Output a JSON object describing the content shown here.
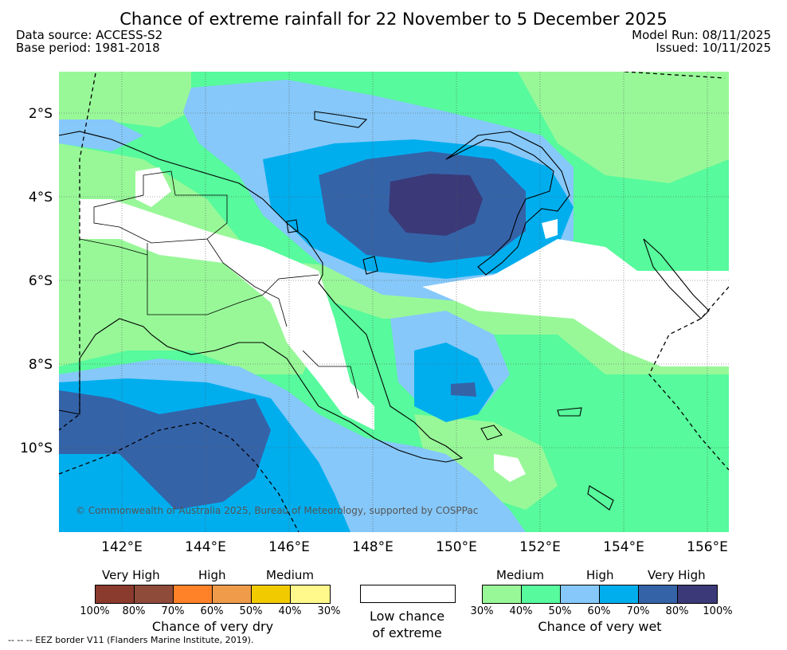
{
  "header": {
    "title": "Chance of extreme rainfall for 22 November to 5 December 2025",
    "data_source": "Data source: ACCESS-S2",
    "base_period": "Base period: 1981-2018",
    "model_run": "Model Run: 08/11/2025",
    "issued": "Issued: 10/11/2025"
  },
  "map": {
    "lat_labels": [
      "2°S",
      "4°S",
      "6°S",
      "8°S",
      "10°S"
    ],
    "lon_labels": [
      "142°E",
      "144°E",
      "146°E",
      "148°E",
      "150°E",
      "152°E",
      "154°E",
      "156°E"
    ],
    "copyright": "© Commonwealth of Australia 2025, Bureau of Meteorology, supported by COSPPac"
  },
  "legend": {
    "dry": {
      "heads": [
        "Very High",
        "High",
        "Medium"
      ],
      "ticks": [
        "100%",
        "80%",
        "70%",
        "60%",
        "50%",
        "40%",
        "30%"
      ],
      "caption": "Chance of very dry",
      "colors": [
        "#8b3a2e",
        "#8e4b3a",
        "#ff8228",
        "#ef9b4a",
        "#f2ca00",
        "#fff98c"
      ]
    },
    "low": {
      "caption_line1": "Low chance",
      "caption_line2": "of extreme"
    },
    "wet": {
      "heads": [
        "Medium",
        "High",
        "Very High"
      ],
      "ticks": [
        "30%",
        "40%",
        "50%",
        "60%",
        "70%",
        "80%",
        "100%"
      ],
      "caption": "Chance of very wet",
      "colors": [
        "#98f898",
        "#57fa9c",
        "#86c8f9",
        "#00aeee",
        "#3563a8",
        "#3b3978"
      ]
    }
  },
  "footnote": "--  --  -- EEZ border V11 (Flanders Marine Institute, 2019)."
}
